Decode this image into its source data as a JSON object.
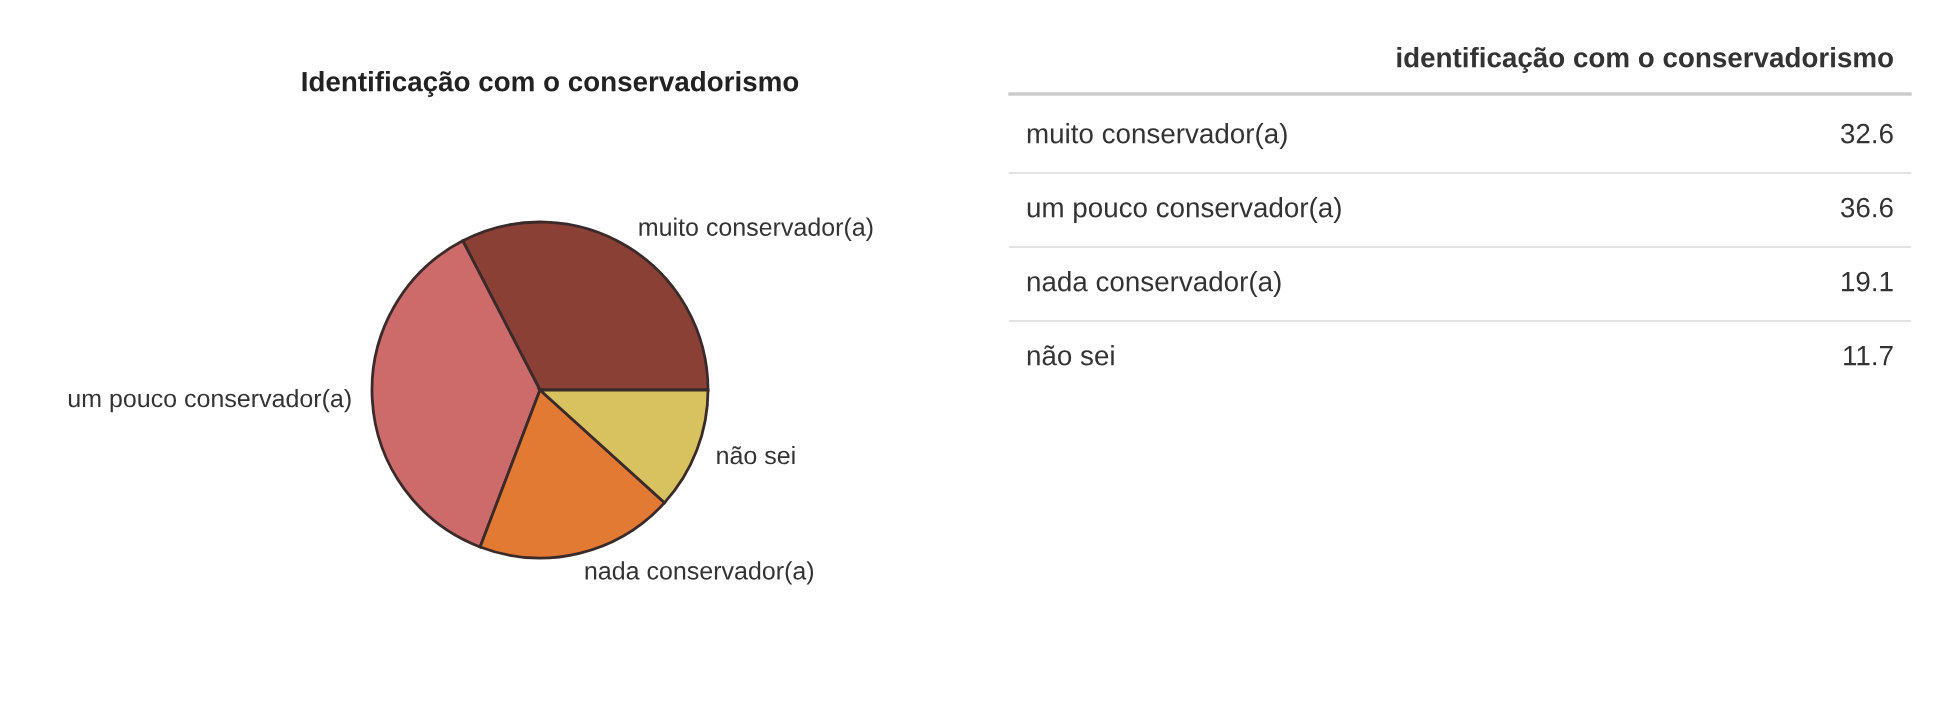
{
  "chart_data": [
    {
      "type": "pie",
      "title": "Identificação com o conservadorismo",
      "categories": [
        "muito conservador(a)",
        "um pouco conservador(a)",
        "nada conservador(a)",
        "não sei"
      ],
      "values": [
        32.6,
        36.6,
        19.1,
        11.7
      ],
      "colors": [
        "#8b4035",
        "#cd6a6a",
        "#e37a33",
        "#d8c260"
      ]
    },
    {
      "type": "other",
      "title": "identificação com o conservadorismo",
      "categories": [
        "muito conservador(a)",
        "um pouco conservador(a)",
        "nada conservador(a)",
        "não sei"
      ],
      "values": [
        32.6,
        36.6,
        19.1,
        11.7
      ],
      "data_labels": true
    }
  ]
}
